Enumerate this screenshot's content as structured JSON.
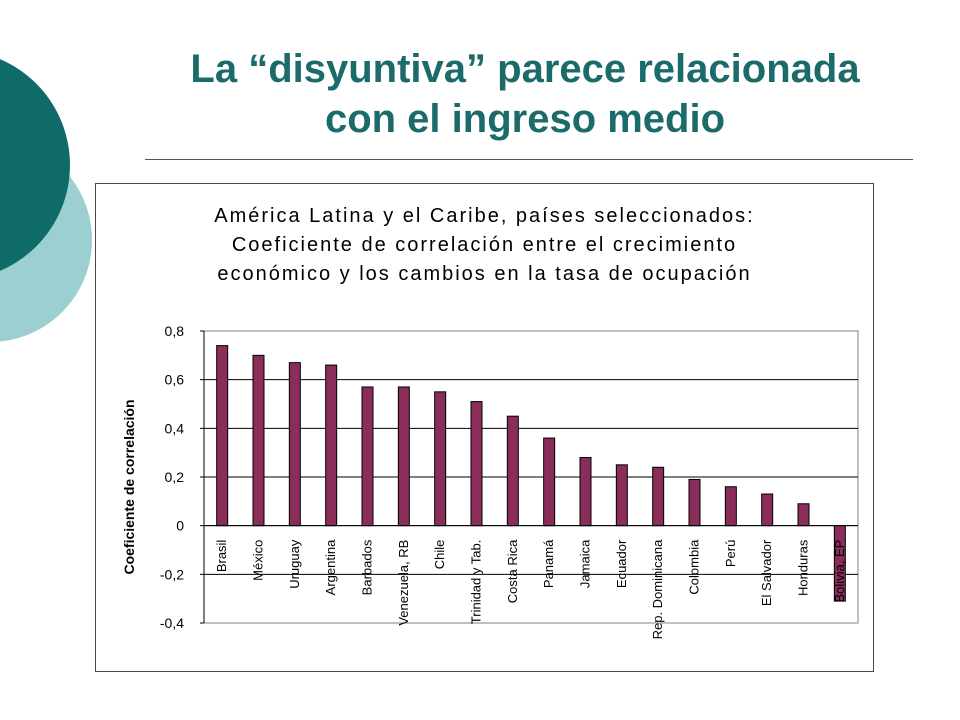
{
  "slide": {
    "title_line1": "La “disyuntiva” parece relacionada",
    "title_line2": "con el ingreso medio",
    "title_color": "#1b6b6b",
    "decor_colors": {
      "dark": "#0e6b68",
      "light": "#9ccfcf"
    }
  },
  "chart_data": {
    "type": "bar",
    "title_lines": [
      "América Latina y el Caribe, países seleccionados:",
      "Coeficiente de correlación entre el crecimiento",
      "económico y los cambios en la tasa de ocupación"
    ],
    "xlabel": "",
    "ylabel": "Coeficiente de correlación",
    "ylim": [
      -0.4,
      0.8
    ],
    "yticks": [
      0.8,
      0.6,
      0.4,
      0.2,
      0,
      -0.2,
      -0.4
    ],
    "ytick_labels": [
      "0,8",
      "0,6",
      "0,4",
      "0,2",
      "0",
      "-0,2",
      "-0,4"
    ],
    "grid": true,
    "bar_color": "#8b2d5a",
    "categories": [
      "Brasil",
      "México",
      "Uruguay",
      "Argentina",
      "Barbados",
      "Venezuela, RB",
      "Chile",
      "Trinidad y Tab.",
      "Costa Rica",
      "Panamá",
      "Jamaica",
      "Ecuador",
      "Rep. Dominicana",
      "Colombia",
      "Perú",
      "El Salvador",
      "Honduras",
      "Bolivia, EP"
    ],
    "values": [
      0.74,
      0.7,
      0.67,
      0.66,
      0.57,
      0.57,
      0.55,
      0.51,
      0.45,
      0.36,
      0.28,
      0.25,
      0.24,
      0.19,
      0.16,
      0.13,
      0.09,
      -0.31
    ]
  }
}
